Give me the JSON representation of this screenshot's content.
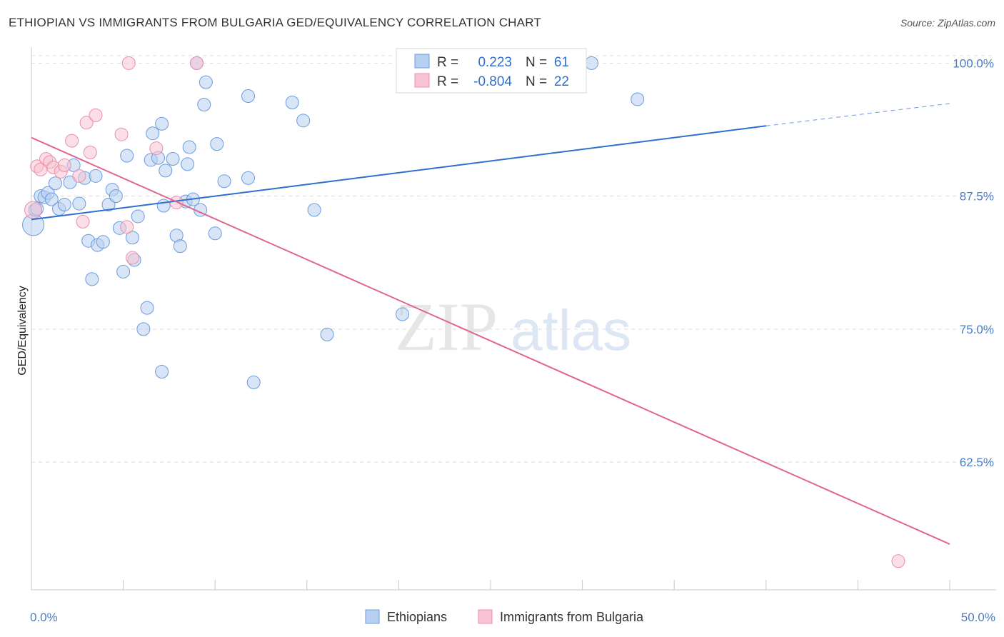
{
  "title": "ETHIOPIAN VS IMMIGRANTS FROM BULGARIA GED/EQUIVALENCY CORRELATION CHART",
  "source": "Source: ZipAtlas.com",
  "watermark": {
    "zip": "ZIP",
    "atlas": "atlas"
  },
  "colors": {
    "blue_fill": "#b8d0f0",
    "blue_stroke": "#6a9be0",
    "blue_line": "#2f6fcf",
    "pink_fill": "#f7c3d2",
    "pink_stroke": "#e890ab",
    "pink_line": "#e06591",
    "tick_text": "#4a7cc7",
    "grid": "#dcdcdc"
  },
  "legend": {
    "rows": [
      {
        "r_label": "R =",
        "r_value": "0.223",
        "n_label": "N =",
        "n_value": "61"
      },
      {
        "r_label": "R =",
        "r_value": "-0.804",
        "n_label": "N =",
        "n_value": "22"
      }
    ]
  },
  "chart_data": {
    "type": "scatter",
    "title": "ETHIOPIAN VS IMMIGRANTS FROM BULGARIA GED/EQUIVALENCY CORRELATION CHART",
    "xlabel": "",
    "ylabel": "GED/Equivalency",
    "xlim": [
      0,
      50
    ],
    "ylim": [
      50.5,
      101.5
    ],
    "x_ticks": [
      {
        "value": 0,
        "label": "0.0%"
      },
      {
        "value": 50,
        "label": "50.0%"
      }
    ],
    "y_ticks": [
      {
        "value": 100,
        "label": "100.0%"
      },
      {
        "value": 87.5,
        "label": "87.5%"
      },
      {
        "value": 75,
        "label": "75.0%"
      },
      {
        "value": 62.5,
        "label": "62.5%"
      }
    ],
    "grid": true,
    "legend_position": "top-center",
    "series": [
      {
        "name": "Ethiopians",
        "color": "#6a9be0",
        "trend": {
          "x0": 0,
          "y0": 85.3,
          "x1": 40,
          "y1": 94.1,
          "dash_to_x": 50,
          "dash_to_y": 96.2
        },
        "points": [
          [
            0.1,
            84.8
          ],
          [
            0.2,
            86.2
          ],
          [
            0.3,
            86.3
          ],
          [
            0.5,
            87.5
          ],
          [
            0.7,
            87.4
          ],
          [
            0.9,
            87.8
          ],
          [
            1.1,
            87.2
          ],
          [
            1.3,
            88.7
          ],
          [
            1.5,
            86.3
          ],
          [
            1.8,
            86.7
          ],
          [
            2.1,
            88.8
          ],
          [
            2.3,
            90.4
          ],
          [
            2.6,
            86.8
          ],
          [
            2.9,
            89.2
          ],
          [
            3.1,
            83.3
          ],
          [
            3.3,
            79.7
          ],
          [
            3.5,
            89.4
          ],
          [
            3.6,
            82.9
          ],
          [
            3.9,
            83.2
          ],
          [
            4.2,
            86.7
          ],
          [
            4.4,
            88.1
          ],
          [
            4.6,
            87.5
          ],
          [
            4.8,
            84.5
          ],
          [
            5.0,
            80.4
          ],
          [
            5.2,
            91.3
          ],
          [
            5.5,
            83.6
          ],
          [
            5.6,
            81.5
          ],
          [
            5.8,
            85.6
          ],
          [
            6.1,
            75.0
          ],
          [
            6.3,
            77.0
          ],
          [
            6.5,
            90.9
          ],
          [
            6.6,
            93.4
          ],
          [
            6.9,
            91.1
          ],
          [
            7.1,
            94.3
          ],
          [
            7.2,
            86.6
          ],
          [
            7.3,
            89.9
          ],
          [
            7.7,
            91.0
          ],
          [
            7.9,
            83.8
          ],
          [
            8.1,
            82.8
          ],
          [
            8.4,
            87.0
          ],
          [
            8.6,
            92.1
          ],
          [
            8.8,
            87.2
          ],
          [
            8.5,
            90.5
          ],
          [
            9.0,
            100.0
          ],
          [
            9.2,
            86.2
          ],
          [
            9.5,
            98.2
          ],
          [
            9.4,
            96.1
          ],
          [
            10.0,
            84.0
          ],
          [
            10.1,
            92.4
          ],
          [
            10.5,
            88.9
          ],
          [
            11.8,
            89.2
          ],
          [
            11.8,
            96.9
          ],
          [
            12.1,
            70.0
          ],
          [
            14.2,
            96.3
          ],
          [
            14.8,
            94.6
          ],
          [
            15.4,
            86.2
          ],
          [
            16.1,
            74.5
          ],
          [
            20.2,
            76.4
          ],
          [
            30.5,
            100.0
          ],
          [
            33.0,
            96.6
          ],
          [
            7.1,
            71.0
          ]
        ]
      },
      {
        "name": "Immigrants from Bulgaria",
        "color": "#e890ab",
        "trend": {
          "x0": 0,
          "y0": 93.0,
          "x1": 50,
          "y1": 54.8
        },
        "points": [
          [
            0.1,
            86.2
          ],
          [
            0.3,
            90.3
          ],
          [
            0.5,
            90.0
          ],
          [
            0.8,
            91.0
          ],
          [
            1.0,
            90.7
          ],
          [
            1.2,
            90.2
          ],
          [
            1.6,
            89.8
          ],
          [
            1.8,
            90.4
          ],
          [
            2.2,
            92.7
          ],
          [
            2.6,
            89.4
          ],
          [
            2.8,
            85.1
          ],
          [
            3.0,
            94.4
          ],
          [
            3.2,
            91.6
          ],
          [
            3.5,
            95.1
          ],
          [
            4.9,
            93.3
          ],
          [
            5.2,
            84.6
          ],
          [
            5.5,
            81.7
          ],
          [
            5.3,
            100.0
          ],
          [
            6.8,
            92.0
          ],
          [
            7.9,
            86.9
          ],
          [
            9.0,
            100.0
          ],
          [
            47.2,
            53.2
          ]
        ]
      }
    ]
  },
  "bottom_legend": [
    {
      "label": "Ethiopians"
    },
    {
      "label": "Immigrants from Bulgaria"
    }
  ]
}
